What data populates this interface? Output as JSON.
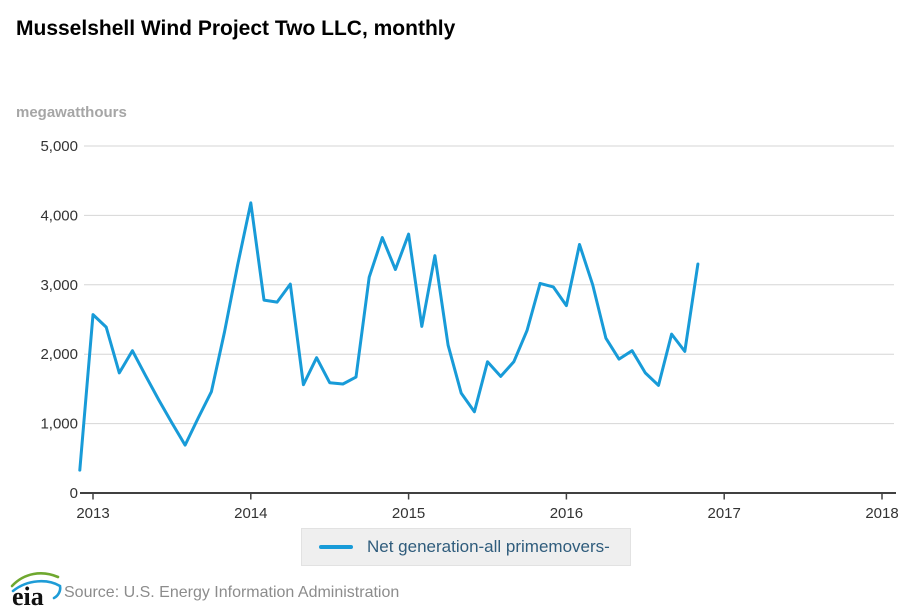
{
  "title": "Musselshell Wind Project Two LLC, monthly",
  "unit_label": "megawatthours",
  "colors": {
    "line": "#189bd8",
    "grid": "#d6d6d6",
    "axis": "#404040",
    "tick_text": "#333333",
    "legend_text": "#2f5c7c",
    "legend_bg": "#efefef"
  },
  "legend": {
    "label": "Net generation-all primemovers-"
  },
  "footer": {
    "logo_text": "eia",
    "source": "Source: U.S. Energy Information Administration"
  },
  "chart_data": {
    "type": "line",
    "title": "Musselshell Wind Project Two LLC, monthly",
    "xlabel": "",
    "ylabel": "megawatthours",
    "ylim": [
      0,
      5000
    ],
    "grid": true,
    "legend_position": "bottom",
    "y_ticks": [
      0,
      1000,
      2000,
      3000,
      4000,
      5000
    ],
    "y_tick_labels": [
      "0",
      "1,000",
      "2,000",
      "3,000",
      "4,000",
      "5,000"
    ],
    "x_tick_labels": [
      "2013",
      "2014",
      "2015",
      "2016",
      "2017",
      "2018"
    ],
    "series": [
      {
        "name": "Net generation-all primemovers-",
        "x": [
          "2012-12",
          "2013-01",
          "2013-02",
          "2013-03",
          "2013-04",
          "2013-05",
          "2013-06",
          "2013-07",
          "2013-08",
          "2013-09",
          "2013-10",
          "2013-11",
          "2013-12",
          "2014-01",
          "2014-02",
          "2014-03",
          "2014-04",
          "2014-05",
          "2014-06",
          "2014-07",
          "2014-08",
          "2014-09",
          "2014-10",
          "2014-11",
          "2014-12",
          "2015-01",
          "2015-02",
          "2015-03",
          "2015-04",
          "2015-05",
          "2015-06",
          "2015-07",
          "2015-08",
          "2015-09",
          "2015-10",
          "2015-11",
          "2015-12",
          "2016-01",
          "2016-02",
          "2016-03",
          "2016-04",
          "2016-05",
          "2016-06",
          "2016-07",
          "2016-08",
          "2016-09",
          "2016-10",
          "2016-11"
        ],
        "values": [
          330,
          2570,
          2390,
          1730,
          2050,
          1690,
          1340,
          1010,
          690,
          1080,
          1460,
          2320,
          3290,
          4180,
          2780,
          2750,
          3010,
          1560,
          1950,
          1590,
          1570,
          1670,
          3110,
          3680,
          3220,
          3730,
          2400,
          3420,
          2130,
          1440,
          1170,
          1890,
          1680,
          1890,
          2340,
          3020,
          2970,
          2700,
          3580,
          3000,
          2230,
          1930,
          2050,
          1730,
          1550,
          2290,
          2040,
          3300
        ]
      }
    ]
  }
}
